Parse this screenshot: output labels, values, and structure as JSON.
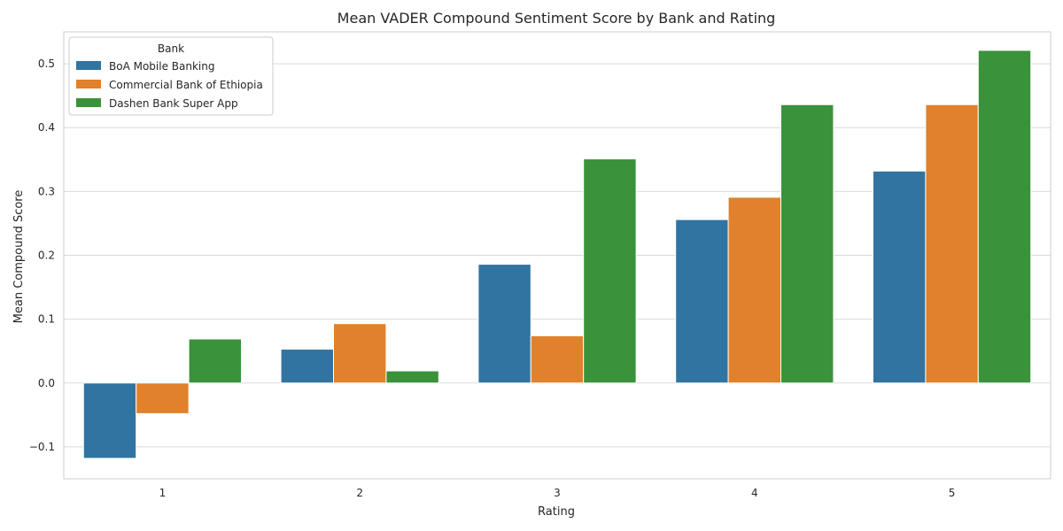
{
  "chart_data": {
    "type": "bar",
    "title": "Mean VADER Compound Sentiment Score by Bank and Rating",
    "xlabel": "Rating",
    "ylabel": "Mean Compound Score",
    "categories": [
      "1",
      "2",
      "3",
      "4",
      "5"
    ],
    "ylim": [
      -0.15,
      0.55
    ],
    "yticks": [
      "−0.1",
      "0.0",
      "0.1",
      "0.2",
      "0.3",
      "0.4",
      "0.5"
    ],
    "ytick_values": [
      -0.1,
      0.0,
      0.1,
      0.2,
      0.3,
      0.4,
      0.5
    ],
    "grid": true,
    "legend": {
      "title": "Bank",
      "placement": "top-left"
    },
    "series": [
      {
        "name": "BoA Mobile Banking",
        "color": "#3274a1",
        "values": [
          -0.118,
          0.053,
          0.186,
          0.256,
          0.332
        ]
      },
      {
        "name": "Commercial Bank of Ethiopia",
        "color": "#e1812c",
        "values": [
          -0.048,
          0.093,
          0.074,
          0.291,
          0.436
        ]
      },
      {
        "name": "Dashen Bank Super App",
        "color": "#3a923a",
        "values": [
          0.069,
          0.019,
          0.351,
          0.436,
          0.521
        ]
      }
    ]
  }
}
